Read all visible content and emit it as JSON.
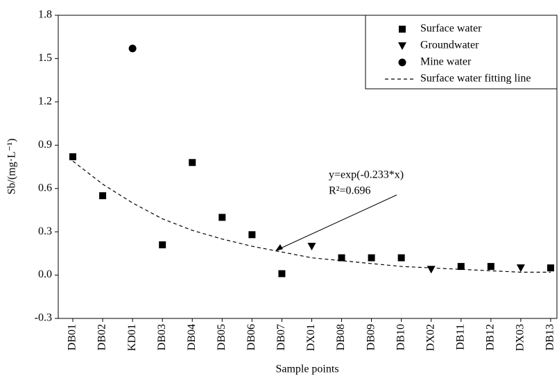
{
  "chart_data": {
    "type": "scatter",
    "xlabel": "Sample points",
    "ylabel": "Sb/(mg·L⁻¹)",
    "categories": [
      "DB01",
      "DB02",
      "KD01",
      "DB03",
      "DB04",
      "DB05",
      "DB06",
      "DB07",
      "DX01",
      "DB08",
      "DB09",
      "DB10",
      "DX02",
      "DB11",
      "DB12",
      "DX03",
      "DB13"
    ],
    "ylim": [
      -0.3,
      1.8
    ],
    "yticks": [
      {
        "value": -0.3,
        "label": "-0.3"
      },
      {
        "value": 0,
        "label": "0.0"
      },
      0.3,
      0.6,
      0.9,
      1.2,
      1.5,
      1.8
    ],
    "legend": "upper right",
    "series": [
      {
        "name": "Surface water",
        "color": "#000000",
        "marker": "square",
        "values": [
          0.82,
          0.55,
          null,
          0.21,
          0.78,
          0.4,
          0.28,
          0.01,
          null,
          0.12,
          0.12,
          0.12,
          null,
          0.06,
          0.06,
          null,
          0.05
        ]
      },
      {
        "name": "Groundwater",
        "color": "#000000",
        "marker": "triangle-down",
        "values": [
          null,
          null,
          null,
          null,
          null,
          null,
          null,
          null,
          0.2,
          null,
          null,
          null,
          0.04,
          null,
          null,
          0.05,
          null
        ]
      },
      {
        "name": "Mine water",
        "color": "#000000",
        "marker": "circle",
        "values": [
          null,
          null,
          1.57,
          null,
          null,
          null,
          null,
          null,
          null,
          null,
          null,
          null,
          null,
          null,
          null,
          null,
          null
        ]
      },
      {
        "name": "Surface water fitting line",
        "color": "#000000",
        "marker": "dashed-line",
        "values": [
          0.79,
          0.63,
          0.5,
          0.39,
          0.31,
          0.25,
          0.2,
          0.16,
          0.12,
          0.1,
          0.08,
          0.06,
          0.05,
          0.04,
          0.03,
          0.02,
          0.02
        ]
      }
    ],
    "annotations": [
      "y=exp(-0.233*x)",
      "R²=0.696"
    ]
  }
}
